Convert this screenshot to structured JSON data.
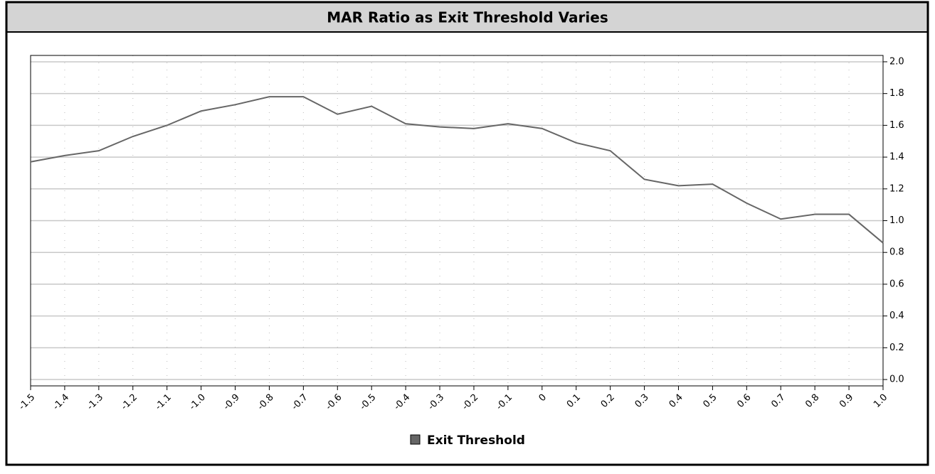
{
  "chart_data": {
    "type": "line",
    "title": "MAR Ratio as Exit Threshold Varies",
    "x": [
      -1.5,
      -1.4,
      -1.3,
      -1.2,
      -1.1,
      -1.0,
      -0.9,
      -0.8,
      -0.7,
      -0.6,
      -0.5,
      -0.4,
      -0.3,
      -0.2,
      -0.1,
      0,
      0.1,
      0.2,
      0.3,
      0.4,
      0.5,
      0.6,
      0.7,
      0.8,
      0.9,
      1.0
    ],
    "series": [
      {
        "name": "Exit Threshold",
        "color": "#666666",
        "values": [
          1.37,
          1.41,
          1.44,
          1.53,
          1.6,
          1.69,
          1.73,
          1.78,
          1.78,
          1.67,
          1.72,
          1.61,
          1.59,
          1.58,
          1.61,
          1.58,
          1.49,
          1.44,
          1.26,
          1.22,
          1.23,
          1.11,
          1.01,
          1.04,
          1.04,
          0.86
        ]
      }
    ],
    "xlim": [
      -1.5,
      1.0
    ],
    "xticks": [
      -1.5,
      -1.4,
      -1.3,
      -1.2,
      -1.1,
      {
        "value": -1.0,
        "label": "-1.0"
      },
      -0.9,
      -0.8,
      -0.7,
      -0.6,
      -0.5,
      -0.4,
      -0.3,
      -0.2,
      -0.1,
      0,
      0.1,
      0.2,
      0.3,
      0.4,
      0.5,
      0.6,
      0.7,
      0.8,
      0.9,
      {
        "value": 1.0,
        "label": "1.0"
      }
    ],
    "ylim": [
      -0.04,
      2.04
    ],
    "yticks": [
      {
        "value": 0,
        "label": "0.0"
      },
      0.2,
      0.4,
      0.6,
      0.8,
      {
        "value": 1,
        "label": "1.0"
      },
      1.2,
      1.4,
      1.6,
      1.8,
      {
        "value": 2,
        "label": "2.0"
      }
    ],
    "grid": true,
    "legend": "bottom"
  }
}
